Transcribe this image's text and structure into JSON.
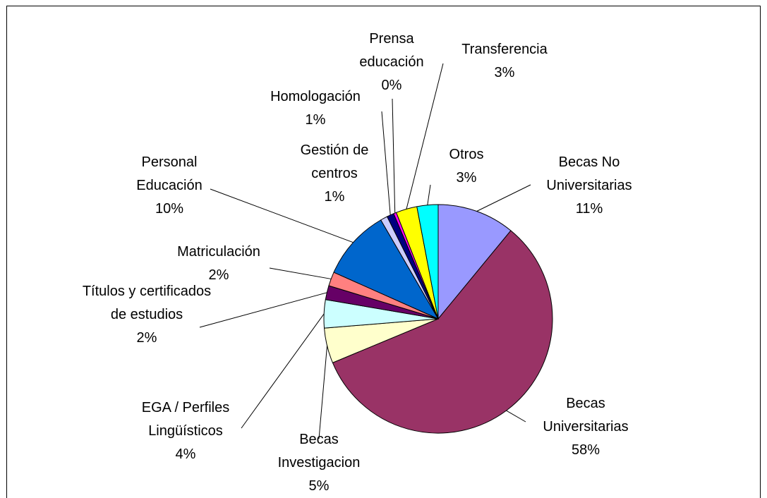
{
  "chart_data": {
    "type": "pie",
    "categories": [
      "Becas No Universitarias",
      "Becas Universitarias",
      "Becas Investigacion",
      "EGA / Perfiles Lingüísticos",
      "Títulos y certificados de estudios",
      "Matriculación",
      "Personal Educación",
      "Gestión de centros",
      "Homologación",
      "Prensa educación",
      "Transferencia",
      "Otros"
    ],
    "values": [
      11,
      58,
      5,
      4,
      2,
      2,
      10,
      1,
      1,
      0.4,
      3,
      3
    ],
    "value_labels": [
      "11%",
      "58%",
      "5%",
      "4%",
      "2%",
      "2%",
      "10%",
      "1%",
      "1%",
      "0%",
      "3%",
      "3%"
    ],
    "colors": [
      "#9999ff",
      "#993366",
      "#ffffcc",
      "#ccffff",
      "#660066",
      "#ff8080",
      "#0066cc",
      "#ccccff",
      "#000080",
      "#ff00ff",
      "#ffff00",
      "#00ffff"
    ]
  }
}
